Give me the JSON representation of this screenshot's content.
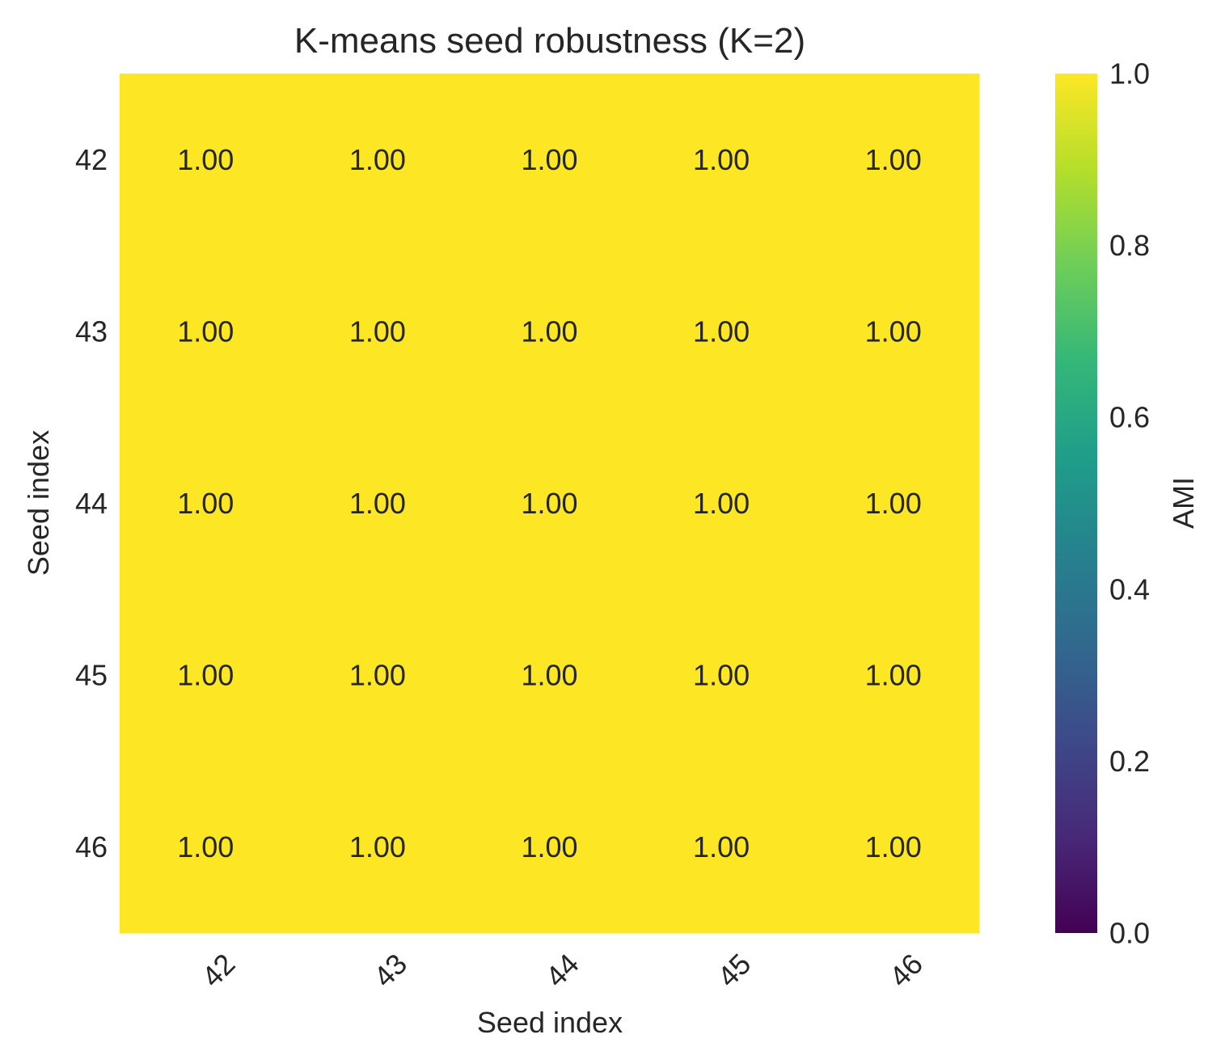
{
  "chart_data": {
    "type": "heatmap",
    "title": "K-means seed robustness (K=2)",
    "xlabel": "Seed index",
    "ylabel": "Seed index",
    "x_categories": [
      "42",
      "43",
      "44",
      "45",
      "46"
    ],
    "y_categories": [
      "42",
      "43",
      "44",
      "45",
      "46"
    ],
    "values": [
      [
        1.0,
        1.0,
        1.0,
        1.0,
        1.0
      ],
      [
        1.0,
        1.0,
        1.0,
        1.0,
        1.0
      ],
      [
        1.0,
        1.0,
        1.0,
        1.0,
        1.0
      ],
      [
        1.0,
        1.0,
        1.0,
        1.0,
        1.0
      ],
      [
        1.0,
        1.0,
        1.0,
        1.0,
        1.0
      ]
    ],
    "value_format_decimals": 2,
    "colorbar": {
      "label": "AMI",
      "range": [
        0.0,
        1.0
      ],
      "ticks": [
        "0.0",
        "0.2",
        "0.4",
        "0.6",
        "0.8",
        "1.0"
      ],
      "colormap": "viridis",
      "colormap_stops": [
        "#440154",
        "#482878",
        "#3e4989",
        "#31688e",
        "#26828e",
        "#1f9e89",
        "#35b779",
        "#6ece58",
        "#b5de2b",
        "#fde725"
      ]
    },
    "grid": false
  }
}
